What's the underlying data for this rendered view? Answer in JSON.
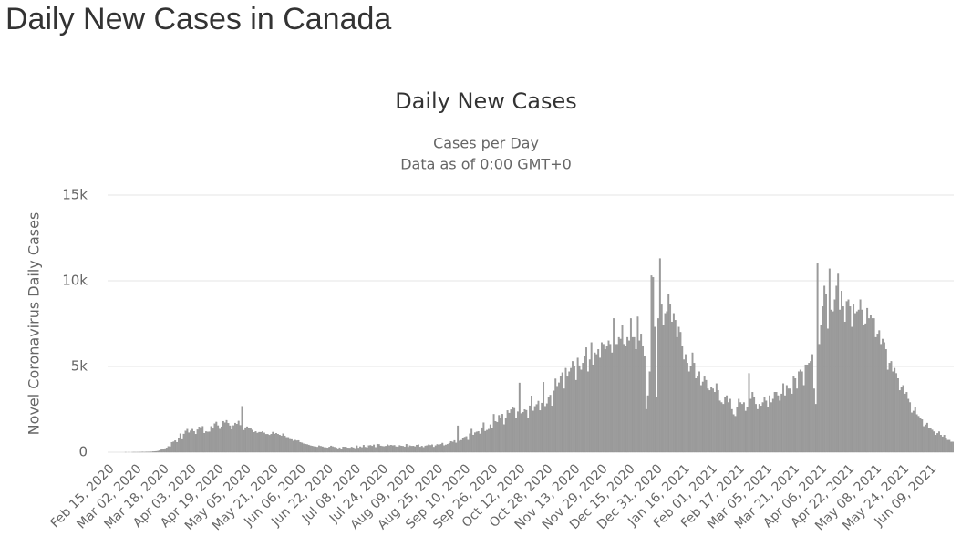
{
  "header": {
    "title": "Daily New Cases in Canada"
  },
  "chart_data": {
    "type": "bar",
    "title": "Daily New Cases",
    "subtitle": [
      "Cases per Day",
      "Data as of 0:00 GMT+0"
    ],
    "y_label": "Novel Coronavirus Daily Cases",
    "color": "#9b9b9b",
    "grid": true,
    "ylim": [
      0,
      15000
    ],
    "yticks": [
      0,
      {
        "value": 5000,
        "label": "5k"
      },
      {
        "value": 10000,
        "label": "10k"
      },
      {
        "value": 15000,
        "label": "15k"
      }
    ],
    "categories": [
      "Feb 15, 2020",
      null,
      null,
      null,
      null,
      null,
      null,
      null,
      null,
      null,
      null,
      null,
      null,
      null,
      null,
      null,
      "Mar 02, 2020",
      null,
      null,
      null,
      null,
      null,
      null,
      null,
      null,
      null,
      null,
      null,
      null,
      null,
      null,
      null,
      "Mar 18, 2020",
      null,
      null,
      null,
      null,
      null,
      null,
      null,
      null,
      null,
      null,
      null,
      null,
      null,
      null,
      null,
      "Apr 03, 2020",
      null,
      null,
      null,
      null,
      null,
      null,
      null,
      null,
      null,
      null,
      null,
      null,
      null,
      null,
      null,
      "Apr 19, 2020",
      null,
      null,
      null,
      null,
      null,
      null,
      null,
      null,
      null,
      null,
      null,
      null,
      null,
      null,
      null,
      "May 05, 2020",
      null,
      null,
      null,
      null,
      null,
      null,
      null,
      null,
      null,
      null,
      null,
      null,
      null,
      null,
      null,
      "May 21, 2020",
      null,
      null,
      null,
      null,
      null,
      null,
      null,
      null,
      null,
      null,
      null,
      null,
      null,
      null,
      null,
      "Jun 06, 2020",
      null,
      null,
      null,
      null,
      null,
      null,
      null,
      null,
      null,
      null,
      null,
      null,
      null,
      null,
      null,
      "Jun 22, 2020",
      null,
      null,
      null,
      null,
      null,
      null,
      null,
      null,
      null,
      null,
      null,
      null,
      null,
      null,
      null,
      "Jul 08, 2020",
      null,
      null,
      null,
      null,
      null,
      null,
      null,
      null,
      null,
      null,
      null,
      null,
      null,
      null,
      null,
      "Jul 24, 2020",
      null,
      null,
      null,
      null,
      null,
      null,
      null,
      null,
      null,
      null,
      null,
      null,
      null,
      null,
      null,
      "Aug 09, 2020",
      null,
      null,
      null,
      null,
      null,
      null,
      null,
      null,
      null,
      null,
      null,
      null,
      null,
      null,
      null,
      "Aug 25, 2020",
      null,
      null,
      null,
      null,
      null,
      null,
      null,
      null,
      null,
      null,
      null,
      null,
      null,
      null,
      null,
      "Sep 10, 2020",
      null,
      null,
      null,
      null,
      null,
      null,
      null,
      null,
      null,
      null,
      null,
      null,
      null,
      null,
      null,
      "Sep 26, 2020",
      null,
      null,
      null,
      null,
      null,
      null,
      null,
      null,
      null,
      null,
      null,
      null,
      null,
      null,
      null,
      "Oct 12, 2020",
      null,
      null,
      null,
      null,
      null,
      null,
      null,
      null,
      null,
      null,
      null,
      null,
      null,
      null,
      null,
      "Oct 28, 2020",
      null,
      null,
      null,
      null,
      null,
      null,
      null,
      null,
      null,
      null,
      null,
      null,
      null,
      null,
      null,
      "Nov 13, 2020",
      null,
      null,
      null,
      null,
      null,
      null,
      null,
      null,
      null,
      null,
      null,
      null,
      null,
      null,
      null,
      "Nov 29, 2020",
      null,
      null,
      null,
      null,
      null,
      null,
      null,
      null,
      null,
      null,
      null,
      null,
      null,
      null,
      null,
      "Dec 15, 2020",
      null,
      null,
      null,
      null,
      null,
      null,
      null,
      null,
      null,
      null,
      null,
      null,
      null,
      null,
      null,
      "Dec 31, 2020",
      null,
      null,
      null,
      null,
      null,
      null,
      null,
      null,
      null,
      null,
      null,
      null,
      null,
      null,
      null,
      "Jan 16, 2021",
      null,
      null,
      null,
      null,
      null,
      null,
      null,
      null,
      null,
      null,
      null,
      null,
      null,
      null,
      null,
      "Feb 01, 2021",
      null,
      null,
      null,
      null,
      null,
      null,
      null,
      null,
      null,
      null,
      null,
      null,
      null,
      null,
      null,
      "Feb 17, 2021",
      null,
      null,
      null,
      null,
      null,
      null,
      null,
      null,
      null,
      null,
      null,
      null,
      null,
      null,
      null,
      "Mar 05, 2021",
      null,
      null,
      null,
      null,
      null,
      null,
      null,
      null,
      null,
      null,
      null,
      null,
      null,
      null,
      null,
      "Mar 21, 2021",
      null,
      null,
      null,
      null,
      null,
      null,
      null,
      null,
      null,
      null,
      null,
      null,
      null,
      null,
      null,
      "Apr 06, 2021",
      null,
      null,
      null,
      null,
      null,
      null,
      null,
      null,
      null,
      null,
      null,
      null,
      null,
      null,
      null,
      "Apr 22, 2021",
      null,
      null,
      null,
      null,
      null,
      null,
      null,
      null,
      null,
      null,
      null,
      null,
      null,
      null,
      null,
      "May 08, 2021",
      null,
      null,
      null,
      null,
      null,
      null,
      null,
      null,
      null,
      null,
      null,
      null,
      null,
      null,
      null,
      "May 24, 2021",
      null,
      null,
      null,
      null,
      null,
      null,
      null,
      null,
      null,
      null,
      null,
      null,
      null,
      null,
      null,
      "Jun 09, 2021",
      null,
      null,
      null,
      null,
      null,
      null,
      null,
      null,
      null,
      null,
      null,
      null,
      null
    ],
    "values": [
      0,
      0,
      0,
      0,
      0,
      0,
      0,
      0,
      0,
      0,
      1,
      0,
      2,
      0,
      1,
      3,
      2,
      3,
      4,
      5,
      12,
      6,
      8,
      10,
      18,
      23,
      34,
      43,
      51,
      70,
      98,
      142,
      178,
      211,
      253,
      340,
      322,
      578,
      610,
      676,
      579,
      823,
      1081,
      743,
      1062,
      1238,
      1346,
      1140,
      1245,
      1340,
      1211,
      1053,
      1310,
      1479,
      1379,
      1511,
      1110,
      1204,
      1189,
      1193,
      1508,
      1372,
      1664,
      1761,
      1547,
      1353,
      1484,
      1803,
      1722,
      1860,
      1688,
      1543,
      1322,
      1550,
      1698,
      1640,
      1816,
      1567,
      2679,
      1279,
      1434,
      1487,
      1382,
      1367,
      1296,
      1162,
      1213,
      1120,
      1169,
      1167,
      1204,
      1126,
      1045,
      1048,
      994,
      1055,
      1174,
      1064,
      1102,
      1051,
      1003,
      954,
      1082,
      952,
      867,
      861,
      751,
      743,
      657,
      704,
      669,
      686,
      578,
      551,
      487,
      472,
      454,
      421,
      379,
      361,
      333,
      321,
      297,
      380,
      349,
      320,
      280,
      271,
      256,
      301,
      368,
      325,
      294,
      260,
      211,
      264,
      195,
      312,
      301,
      278,
      250,
      246,
      299,
      265,
      221,
      380,
      245,
      321,
      279,
      412,
      296,
      264,
      389,
      402,
      354,
      431,
      286,
      473,
      458,
      369,
      347,
      339,
      354,
      444,
      389,
      413,
      392,
      401,
      322,
      309,
      397,
      366,
      352,
      315,
      465,
      297,
      380,
      353,
      362,
      326,
      419,
      442,
      301,
      354,
      287,
      370,
      392,
      440,
      402,
      437,
      298,
      383,
      456,
      421,
      461,
      534,
      391,
      429,
      462,
      530,
      631,
      598,
      688,
      545,
      1540,
      658,
      694,
      816,
      879,
      919,
      701,
      1074,
      1351,
      1005,
      1142,
      1189,
      1212,
      1067,
      1431,
      1723,
      1225,
      1283,
      1341,
      1602,
      1413,
      2212,
      1797,
      1750,
      2154,
      1986,
      2218,
      1612,
      1976,
      2432,
      2284,
      2480,
      2625,
      2558,
      1975,
      2364,
      4042,
      2258,
      2333,
      2488,
      2446,
      1988,
      2709,
      3287,
      2408,
      2668,
      2788,
      2982,
      2432,
      2868,
      4081,
      2680,
      2831,
      3181,
      3329,
      2700,
      3580,
      4282,
      3850,
      4050,
      4450,
      4640,
      3700,
      4900,
      4400,
      4700,
      4900,
      5300,
      5040,
      4200,
      5500,
      5050,
      4800,
      5200,
      5600,
      6100,
      4700,
      5400,
      6400,
      5100,
      5800,
      5700,
      6000,
      5500,
      6400,
      6300,
      6000,
      6200,
      6500,
      6300,
      5800,
      7800,
      6300,
      6300,
      6700,
      6600,
      7400,
      6300,
      6200,
      6700,
      6500,
      7800,
      6700,
      6700,
      6000,
      7900,
      6500,
      6900,
      6200,
      5600,
      2500,
      3300,
      4700,
      10300,
      10200,
      7300,
      3200,
      7800,
      11300,
      8600,
      7400,
      8100,
      8200,
      9200,
      8600,
      7600,
      8100,
      7700,
      6700,
      7300,
      7000,
      6200,
      5400,
      5700,
      5200,
      4700,
      5000,
      5800,
      5200,
      4300,
      4400,
      4700,
      3900,
      4100,
      4400,
      4200,
      3700,
      3600,
      3800,
      3700,
      3500,
      4000,
      3600,
      3000,
      2900,
      2800,
      3200,
      3300,
      2900,
      3100,
      2500,
      2200,
      2100,
      2600,
      3100,
      2900,
      2800,
      2900,
      2400,
      2600,
      4600,
      3100,
      3500,
      3200,
      2800,
      2500,
      2800,
      2700,
      2900,
      3200,
      3000,
      2600,
      3300,
      2900,
      3100,
      3500,
      3500,
      3300,
      3000,
      3400,
      4000,
      3300,
      3900,
      3700,
      3700,
      3400,
      4400,
      4300,
      3700,
      4700,
      4800,
      4700,
      3900,
      5100,
      5100,
      5200,
      5300,
      5700,
      3700,
      2800,
      11000,
      6300,
      7400,
      8500,
      9700,
      9200,
      7200,
      10700,
      8300,
      8200,
      8900,
      9700,
      10400,
      8300,
      9400,
      8500,
      7600,
      8800,
      8900,
      8500,
      7300,
      8600,
      8100,
      8200,
      8300,
      8900,
      8300,
      7400,
      7500,
      8400,
      7800,
      8000,
      7800,
      7800,
      6700,
      6900,
      7100,
      6300,
      6600,
      6400,
      6000,
      4800,
      5200,
      5300,
      4700,
      4900,
      4600,
      4300,
      3600,
      3800,
      3900,
      3400,
      3500,
      3100,
      2900,
      2300,
      2400,
      2600,
      2200,
      2100,
      2000,
      1900,
      1500,
      1600,
      1700,
      1400,
      1400,
      1300,
      1200,
      1000,
      1100,
      1200,
      1000,
      900,
      1000,
      800,
      700,
      700,
      600,
      600
    ]
  }
}
